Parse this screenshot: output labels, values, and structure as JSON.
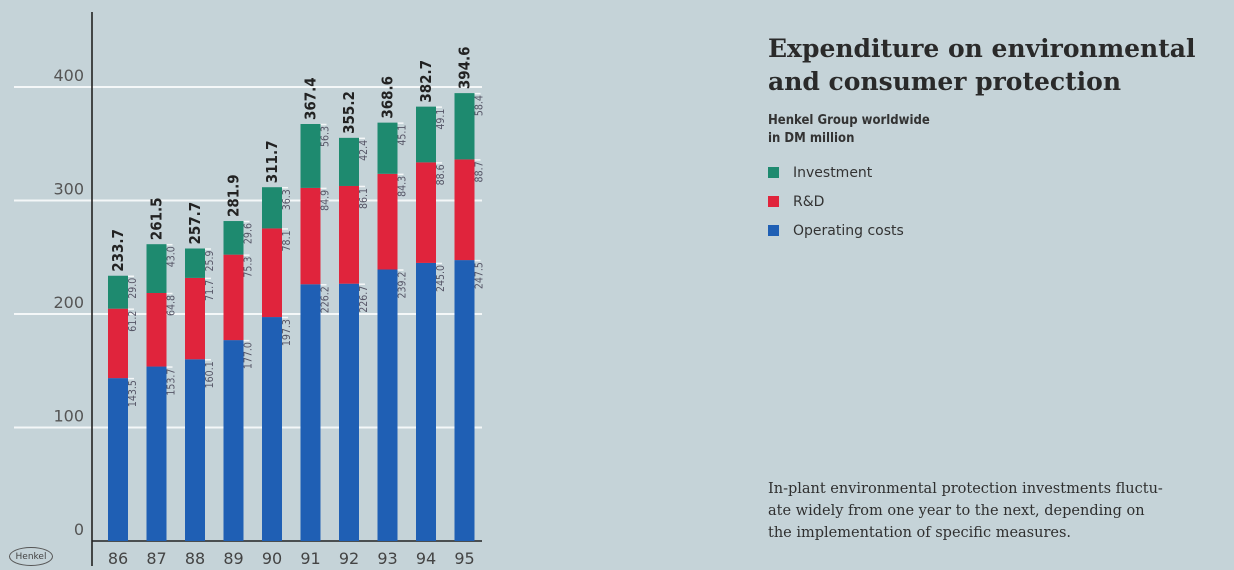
{
  "title_line1": "Expenditure on environmental",
  "title_line2": "and consumer protection",
  "subtitle_line1": "Henkel Group worldwide",
  "subtitle_line2": "in DM million",
  "footnote_lines": [
    "In-plant environmental protection investments fluctu-",
    "ate widely from one year to the next, depending on",
    "the implementation of specific measures."
  ],
  "logo_text": "Henkel",
  "colors": {
    "investment": "#1e8a6f",
    "rd": "#e0243c",
    "operating": "#1f5fb4",
    "background": "#c5d3d8"
  },
  "chart_data": {
    "type": "bar",
    "stacked": true,
    "categories": [
      "86",
      "87",
      "88",
      "89",
      "90",
      "91",
      "92",
      "93",
      "94",
      "95"
    ],
    "series": [
      {
        "name": "Operating costs",
        "values": [
          143.5,
          153.7,
          160.1,
          177.0,
          197.3,
          226.2,
          226.7,
          239.2,
          245.0,
          247.5
        ]
      },
      {
        "name": "R&D",
        "values": [
          61.2,
          64.8,
          71.7,
          75.3,
          78.1,
          84.9,
          86.1,
          84.3,
          88.6,
          88.7
        ]
      },
      {
        "name": "Investment",
        "values": [
          29.0,
          43.0,
          25.9,
          29.6,
          36.3,
          56.3,
          42.4,
          45.1,
          49.1,
          58.4
        ]
      }
    ],
    "totals": [
      "233.7",
      "261.5",
      "257.7",
      "281.9",
      "311.7",
      "367.4",
      "355.2",
      "368.6",
      "382.7",
      "394.6"
    ],
    "segment_labels": {
      "Operating costs": [
        "143.5",
        "153.7",
        "160.1",
        "177.0",
        "197.3",
        "226.2",
        "226.7",
        "239.2",
        "245.0",
        "247.5"
      ],
      "R&D": [
        "61.2",
        "64.8",
        "71.7",
        "75.3",
        "78.1",
        "84.9",
        "86.1",
        "84.3",
        "88.6",
        "88.7"
      ],
      "Investment": [
        "29.0",
        "43.0",
        "25.9",
        "29.6",
        "36.3",
        "56.3",
        "42.4",
        "45.1",
        "49.1",
        "58.4"
      ]
    },
    "yticks": [
      "0",
      "100",
      "200",
      "300",
      "400"
    ],
    "ylim": [
      0,
      400
    ],
    "grid": true,
    "legend_position": "right"
  }
}
